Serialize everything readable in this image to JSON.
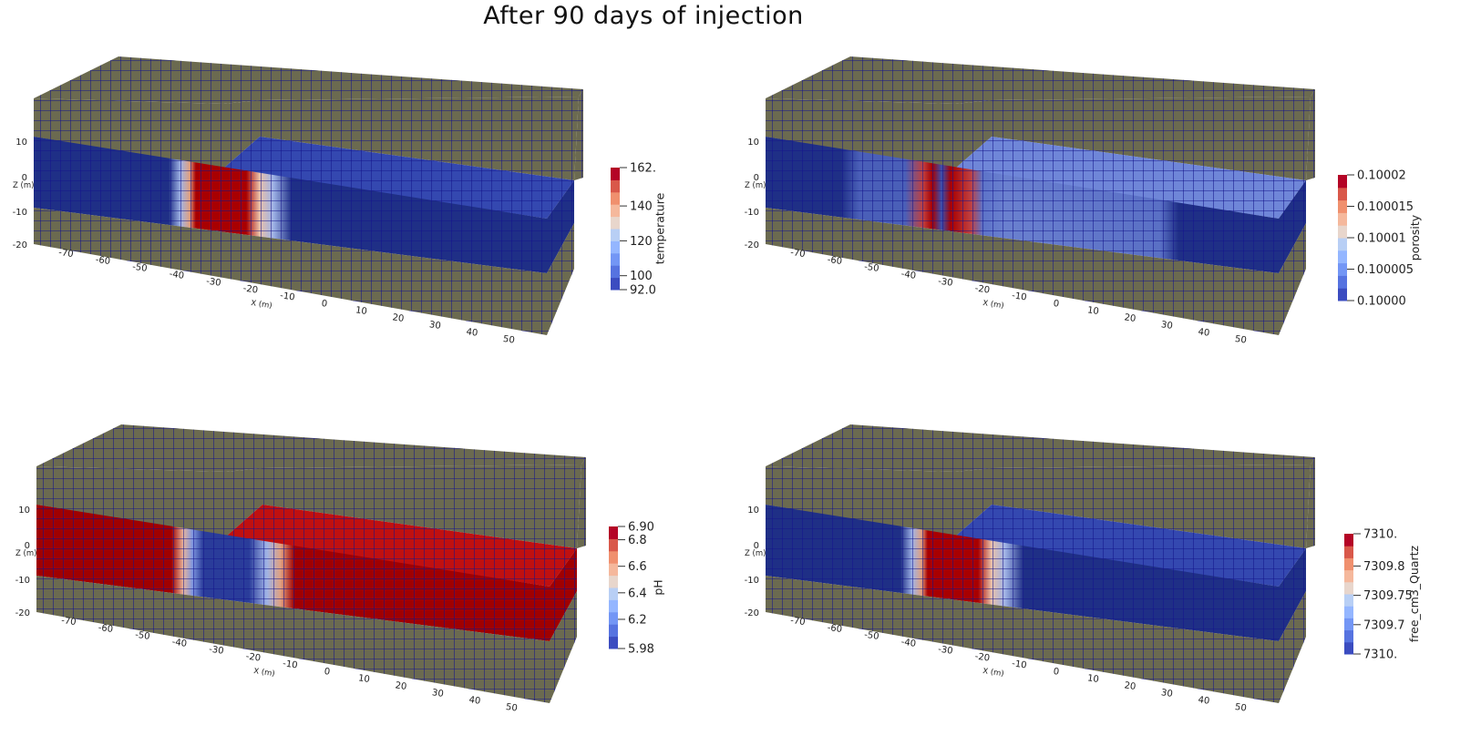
{
  "title": "After 90 days of injection",
  "colors": {
    "caprock": "#6b6a50",
    "grid_line": "#14148c",
    "reservoir_dark": "#1f2f86",
    "reservoir_top": "#3448b0",
    "hot_red": "#a80000",
    "colormap": [
      "#3b4cc0",
      "#5673e0",
      "#7396f5",
      "#94b6ff",
      "#b8cff5",
      "#e8d6cc",
      "#f5b89c",
      "#f0906e",
      "#d9584a",
      "#b40426"
    ]
  },
  "axes": {
    "z_label": "Z (m)",
    "x_label": "X (m)",
    "z_ticks": [
      "10",
      "0",
      "-10",
      "-20"
    ],
    "x_ticks": [
      "-70",
      "-60",
      "-50",
      "-40",
      "-30",
      "-20",
      "-10",
      "0",
      "10",
      "20",
      "30",
      "40",
      "50"
    ]
  },
  "panels": [
    {
      "field": "temperature",
      "range": [
        92.0,
        162.0
      ],
      "ticks": [
        {
          "value": 162.0,
          "label": "162."
        },
        {
          "value": 140,
          "label": "140"
        },
        {
          "value": 120,
          "label": "120"
        },
        {
          "value": 100,
          "label": "100"
        },
        {
          "value": 92.0,
          "label": "92.0"
        }
      ]
    },
    {
      "field": "porosity",
      "range": [
        0.1,
        0.10002
      ],
      "ticks": [
        {
          "value": 0.10002,
          "label": "0.10002"
        },
        {
          "value": 0.100015,
          "label": "0.100015"
        },
        {
          "value": 0.10001,
          "label": "0.10001"
        },
        {
          "value": 0.100005,
          "label": "0.100005"
        },
        {
          "value": 0.1,
          "label": "0.10000"
        }
      ]
    },
    {
      "field": "pH",
      "range": [
        5.98,
        6.9
      ],
      "ticks": [
        {
          "value": 6.9,
          "label": "6.90"
        },
        {
          "value": 6.8,
          "label": "6.8"
        },
        {
          "value": 6.6,
          "label": "6.6"
        },
        {
          "value": 6.4,
          "label": "6.4"
        },
        {
          "value": 6.2,
          "label": "6.2"
        },
        {
          "value": 5.98,
          "label": "5.98"
        }
      ]
    },
    {
      "field": "free_cm3_Quartz",
      "range": [
        7309.65,
        7309.855
      ],
      "ticks": [
        {
          "value": 7309.855,
          "label": "7310."
        },
        {
          "value": 7309.8,
          "label": "7309.8"
        },
        {
          "value": 7309.75,
          "label": "7309.75"
        },
        {
          "value": 7309.7,
          "label": "7309.7"
        },
        {
          "value": 7309.65,
          "label": "7310."
        }
      ]
    }
  ]
}
